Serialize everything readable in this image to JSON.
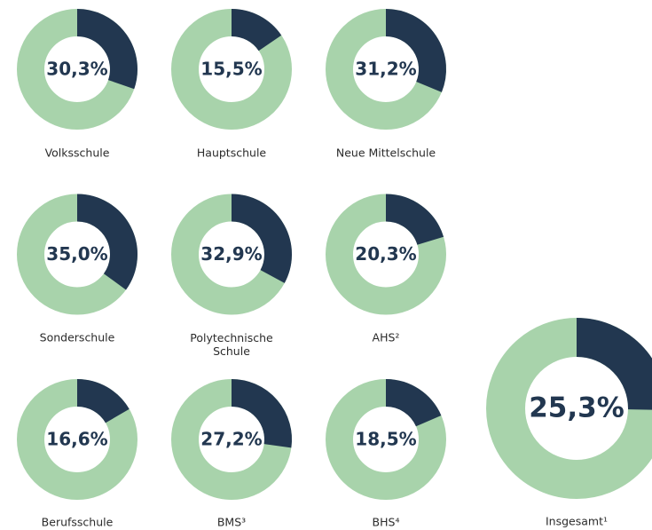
{
  "chart_data": [
    {
      "type": "donut",
      "label": "Volksschule",
      "values": [
        30.3
      ],
      "value_labels": [
        "30,3%"
      ],
      "color": "#223750",
      "rest_color": "#a8d3ab"
    },
    {
      "type": "donut",
      "label": "Hauptschule",
      "values": [
        15.5
      ],
      "value_labels": [
        "15,5%"
      ],
      "color": "#223750",
      "rest_color": "#a8d3ab"
    },
    {
      "type": "donut",
      "label": "Neue Mittelschule",
      "values": [
        31.2
      ],
      "value_labels": [
        "31,2%"
      ],
      "color": "#223750",
      "rest_color": "#a8d3ab"
    },
    {
      "type": "donut",
      "label": "Sonderschule",
      "values": [
        35.0
      ],
      "value_labels": [
        "35,0%"
      ],
      "color": "#223750",
      "rest_color": "#a8d3ab"
    },
    {
      "type": "donut",
      "label": "Polytechnische Schule",
      "values": [
        32.9
      ],
      "value_labels": [
        "32,9%"
      ],
      "color": "#223750",
      "rest_color": "#a8d3ab"
    },
    {
      "type": "donut",
      "label": "AHS²",
      "values": [
        20.3
      ],
      "value_labels": [
        "20,3%"
      ],
      "color": "#223750",
      "rest_color": "#a8d3ab"
    },
    {
      "type": "donut",
      "label": "Berufsschule",
      "values": [
        16.6
      ],
      "value_labels": [
        "16,6%"
      ],
      "color": "#223750",
      "rest_color": "#a8d3ab"
    },
    {
      "type": "donut",
      "label": "BMS³",
      "values": [
        27.2
      ],
      "value_labels": [
        "27,2%"
      ],
      "color": "#223750",
      "rest_color": "#a8d3ab"
    },
    {
      "type": "donut",
      "label": "BHS⁴",
      "values": [
        18.5
      ],
      "value_labels": [
        "18,5%"
      ],
      "color": "#223750",
      "rest_color": "#a8d3ab"
    },
    {
      "type": "donut",
      "label": "Insgesamt¹",
      "values": [
        25.3
      ],
      "value_labels": [
        "25,3%"
      ],
      "color": "#223750",
      "rest_color": "#a8d3ab"
    }
  ]
}
